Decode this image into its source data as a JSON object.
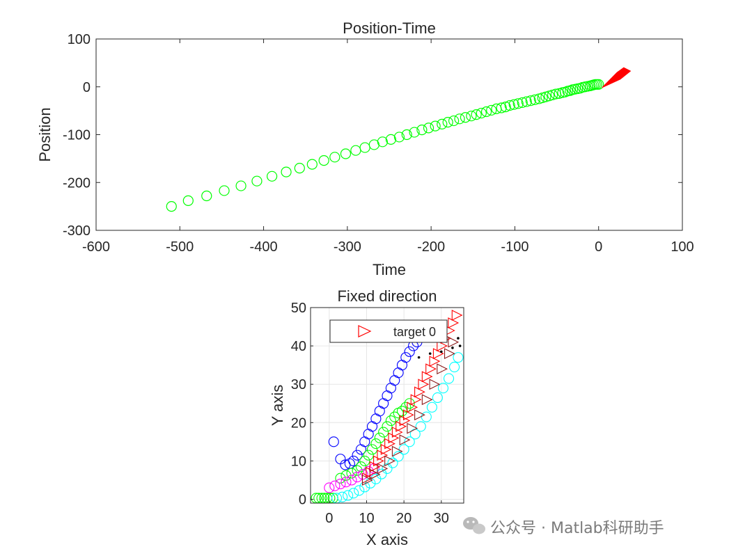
{
  "chart_data": [
    {
      "type": "scatter",
      "title": "Position-Time",
      "xlabel": "Time",
      "ylabel": "Position",
      "xlim": [
        -600,
        100
      ],
      "ylim": [
        -300,
        100
      ],
      "xticks": [
        "-600",
        "-500",
        "-400",
        "-300",
        "-200",
        "-100",
        "0",
        "100"
      ],
      "yticks": [
        "-300",
        "-200",
        "-100",
        "0",
        "100"
      ],
      "grid": false,
      "series": [
        {
          "name": "trajectory",
          "marker": "circle",
          "color": "#00ff00",
          "x": [
            -510,
            -490,
            -468,
            -447,
            -427,
            -408,
            -390,
            -373,
            -357,
            -342,
            -328,
            -315,
            -302,
            -290,
            -279,
            -268,
            -258,
            -248,
            -238,
            -229,
            -220,
            -211,
            -203,
            -195,
            -187,
            -180,
            -173,
            -166,
            -159,
            -152,
            -146,
            -140,
            -134,
            -128,
            -122,
            -116,
            -111,
            -106,
            -101,
            -96,
            -91,
            -86,
            -81,
            -76,
            -71,
            -67,
            -63,
            -59,
            -55,
            -51,
            -47,
            -43,
            -40,
            -37,
            -34,
            -31,
            -28,
            -25,
            -22,
            -19,
            -16,
            -13,
            -10,
            -8,
            -6,
            -4,
            -2,
            0
          ],
          "y": [
            -250,
            -238,
            -228,
            -217,
            -207,
            -197,
            -187,
            -178,
            -170,
            -162,
            -154,
            -147,
            -140,
            -133,
            -127,
            -121,
            -115,
            -110,
            -105,
            -100,
            -95,
            -90,
            -86,
            -82,
            -78,
            -74,
            -71,
            -67,
            -64,
            -61,
            -58,
            -55,
            -52,
            -49,
            -46,
            -44,
            -42,
            -39,
            -37,
            -35,
            -33,
            -31,
            -29,
            -27,
            -25,
            -23,
            -21,
            -19,
            -17,
            -15,
            -14,
            -12,
            -11,
            -9,
            -8,
            -6,
            -5,
            -4,
            -3,
            -1,
            0,
            1,
            2,
            3,
            4,
            5,
            5,
            5
          ]
        },
        {
          "name": "arrow",
          "marker": "filled-arrow",
          "color": "#ff0000",
          "polygon": [
            [
              4,
              -2
            ],
            [
              22,
              30
            ],
            [
              30,
              40
            ],
            [
              38,
              33
            ],
            [
              26,
              16
            ],
            [
              6,
              0
            ]
          ]
        }
      ]
    },
    {
      "type": "scatter",
      "title": "Fixed direction",
      "xlabel": "X axis",
      "ylabel": "Y axis",
      "xlim": [
        -5,
        36
      ],
      "ylim": [
        -1,
        50
      ],
      "xticks": [
        "0",
        "10",
        "20",
        "30"
      ],
      "yticks": [
        "0",
        "10",
        "20",
        "30",
        "40",
        "50"
      ],
      "grid": true,
      "legend": {
        "position": "top",
        "entries": [
          {
            "label": "target 0",
            "marker": "triangle-right",
            "color": "#ff0000"
          }
        ]
      },
      "series": [
        {
          "name": "blue",
          "marker": "circle",
          "color": "#0000ff",
          "points": [
            [
              1.2,
              15
            ],
            [
              3,
              10.5
            ],
            [
              4.3,
              9
            ],
            [
              5.5,
              9.3
            ],
            [
              6.5,
              10
            ],
            [
              7.5,
              11.5
            ],
            [
              8.5,
              13
            ],
            [
              9.5,
              15
            ],
            [
              10.5,
              17
            ],
            [
              11.5,
              19
            ],
            [
              12.5,
              21
            ],
            [
              13.5,
              23
            ],
            [
              14.5,
              25
            ],
            [
              15.5,
              27
            ],
            [
              16.5,
              29
            ],
            [
              17.5,
              31
            ],
            [
              18.5,
              33
            ],
            [
              19.5,
              35
            ],
            [
              20.5,
              37
            ],
            [
              21.5,
              38.5
            ],
            [
              22.5,
              40
            ],
            [
              23.5,
              41
            ]
          ]
        },
        {
          "name": "green",
          "marker": "circle",
          "color": "#00ff00",
          "points": [
            [
              -3.5,
              0.3
            ],
            [
              -2.8,
              0.3
            ],
            [
              -2,
              0.3
            ],
            [
              -1.3,
              0.3
            ],
            [
              -0.6,
              0.3
            ],
            [
              0.2,
              0.3
            ],
            [
              1,
              0.3
            ],
            [
              3,
              5.5
            ],
            [
              4.5,
              6.2
            ],
            [
              6,
              6.8
            ],
            [
              7.5,
              7.5
            ],
            [
              8.5,
              8.5
            ],
            [
              9.5,
              10
            ],
            [
              10.5,
              11.5
            ],
            [
              11.5,
              13
            ],
            [
              12.5,
              14.5
            ],
            [
              13.5,
              16
            ],
            [
              14.5,
              17.5
            ],
            [
              15.5,
              19
            ],
            [
              16.5,
              20.5
            ],
            [
              17.5,
              21.5
            ],
            [
              18.5,
              22.5
            ],
            [
              19.5,
              23
            ],
            [
              20.5,
              24
            ],
            [
              21.5,
              25
            ]
          ]
        },
        {
          "name": "magenta",
          "marker": "circle",
          "color": "#ff00ff",
          "points": [
            [
              0,
              3
            ],
            [
              1.5,
              3.5
            ],
            [
              3,
              4
            ],
            [
              4.5,
              4.5
            ],
            [
              6,
              5
            ],
            [
              7.5,
              5.8
            ],
            [
              9,
              6.5
            ],
            [
              10.5,
              7.3
            ],
            [
              12,
              8
            ]
          ]
        },
        {
          "name": "cyan",
          "marker": "circle",
          "color": "#00ffff",
          "points": [
            [
              2,
              0.3
            ],
            [
              3.5,
              0.6
            ],
            [
              5,
              1
            ],
            [
              6.5,
              1.6
            ],
            [
              8,
              2.3
            ],
            [
              9.5,
              3.2
            ],
            [
              11,
              4.2
            ],
            [
              12.5,
              5.3
            ],
            [
              14,
              6.6
            ],
            [
              15.5,
              8
            ],
            [
              17,
              9.5
            ],
            [
              18.5,
              11.2
            ],
            [
              20,
              13
            ],
            [
              21.5,
              15
            ],
            [
              23,
              17
            ],
            [
              24.5,
              19
            ],
            [
              26,
              21.5
            ],
            [
              27.5,
              24
            ],
            [
              29,
              26.5
            ],
            [
              30.5,
              29
            ],
            [
              32,
              31.5
            ],
            [
              33.5,
              34.5
            ],
            [
              34.5,
              37
            ]
          ]
        },
        {
          "name": "target 0",
          "marker": "triangle-right",
          "color": "#ff0000",
          "points": [
            [
              10,
              5.5
            ],
            [
              11,
              7
            ],
            [
              12,
              8.5
            ],
            [
              13,
              10
            ],
            [
              14,
              11.5
            ],
            [
              15,
              13
            ],
            [
              16,
              14.5
            ],
            [
              17,
              16
            ],
            [
              18,
              17.5
            ],
            [
              19,
              19
            ],
            [
              20,
              20.5
            ],
            [
              21,
              22
            ],
            [
              22,
              24
            ],
            [
              23,
              26
            ],
            [
              24,
              28
            ],
            [
              25,
              30
            ],
            [
              26,
              32
            ],
            [
              27,
              34
            ],
            [
              28,
              36
            ],
            [
              29,
              38
            ],
            [
              30,
              40
            ],
            [
              31,
              42
            ],
            [
              32,
              44
            ],
            [
              33,
              46
            ],
            [
              34,
              48
            ]
          ]
        },
        {
          "name": "dark-red",
          "marker": "triangle-right",
          "color": "#8b1a1a",
          "points": [
            [
              10,
              5
            ],
            [
              12,
              6.5
            ],
            [
              14,
              8
            ],
            [
              16,
              10
            ],
            [
              18,
              12.5
            ],
            [
              20,
              15.5
            ],
            [
              22,
              18.5
            ],
            [
              24,
              22
            ],
            [
              26,
              26
            ],
            [
              28,
              30
            ],
            [
              30,
              34
            ],
            [
              32,
              38
            ],
            [
              33,
              41
            ]
          ]
        },
        {
          "name": "black",
          "marker": "dot",
          "color": "#000000",
          "points": [
            [
              24,
              37
            ],
            [
              27,
              38
            ],
            [
              30,
              38.5
            ],
            [
              33,
              39.5
            ],
            [
              35,
              40
            ],
            [
              34.5,
              42
            ]
          ]
        }
      ]
    }
  ],
  "watermark": "公众号 · Matlab科研助手"
}
